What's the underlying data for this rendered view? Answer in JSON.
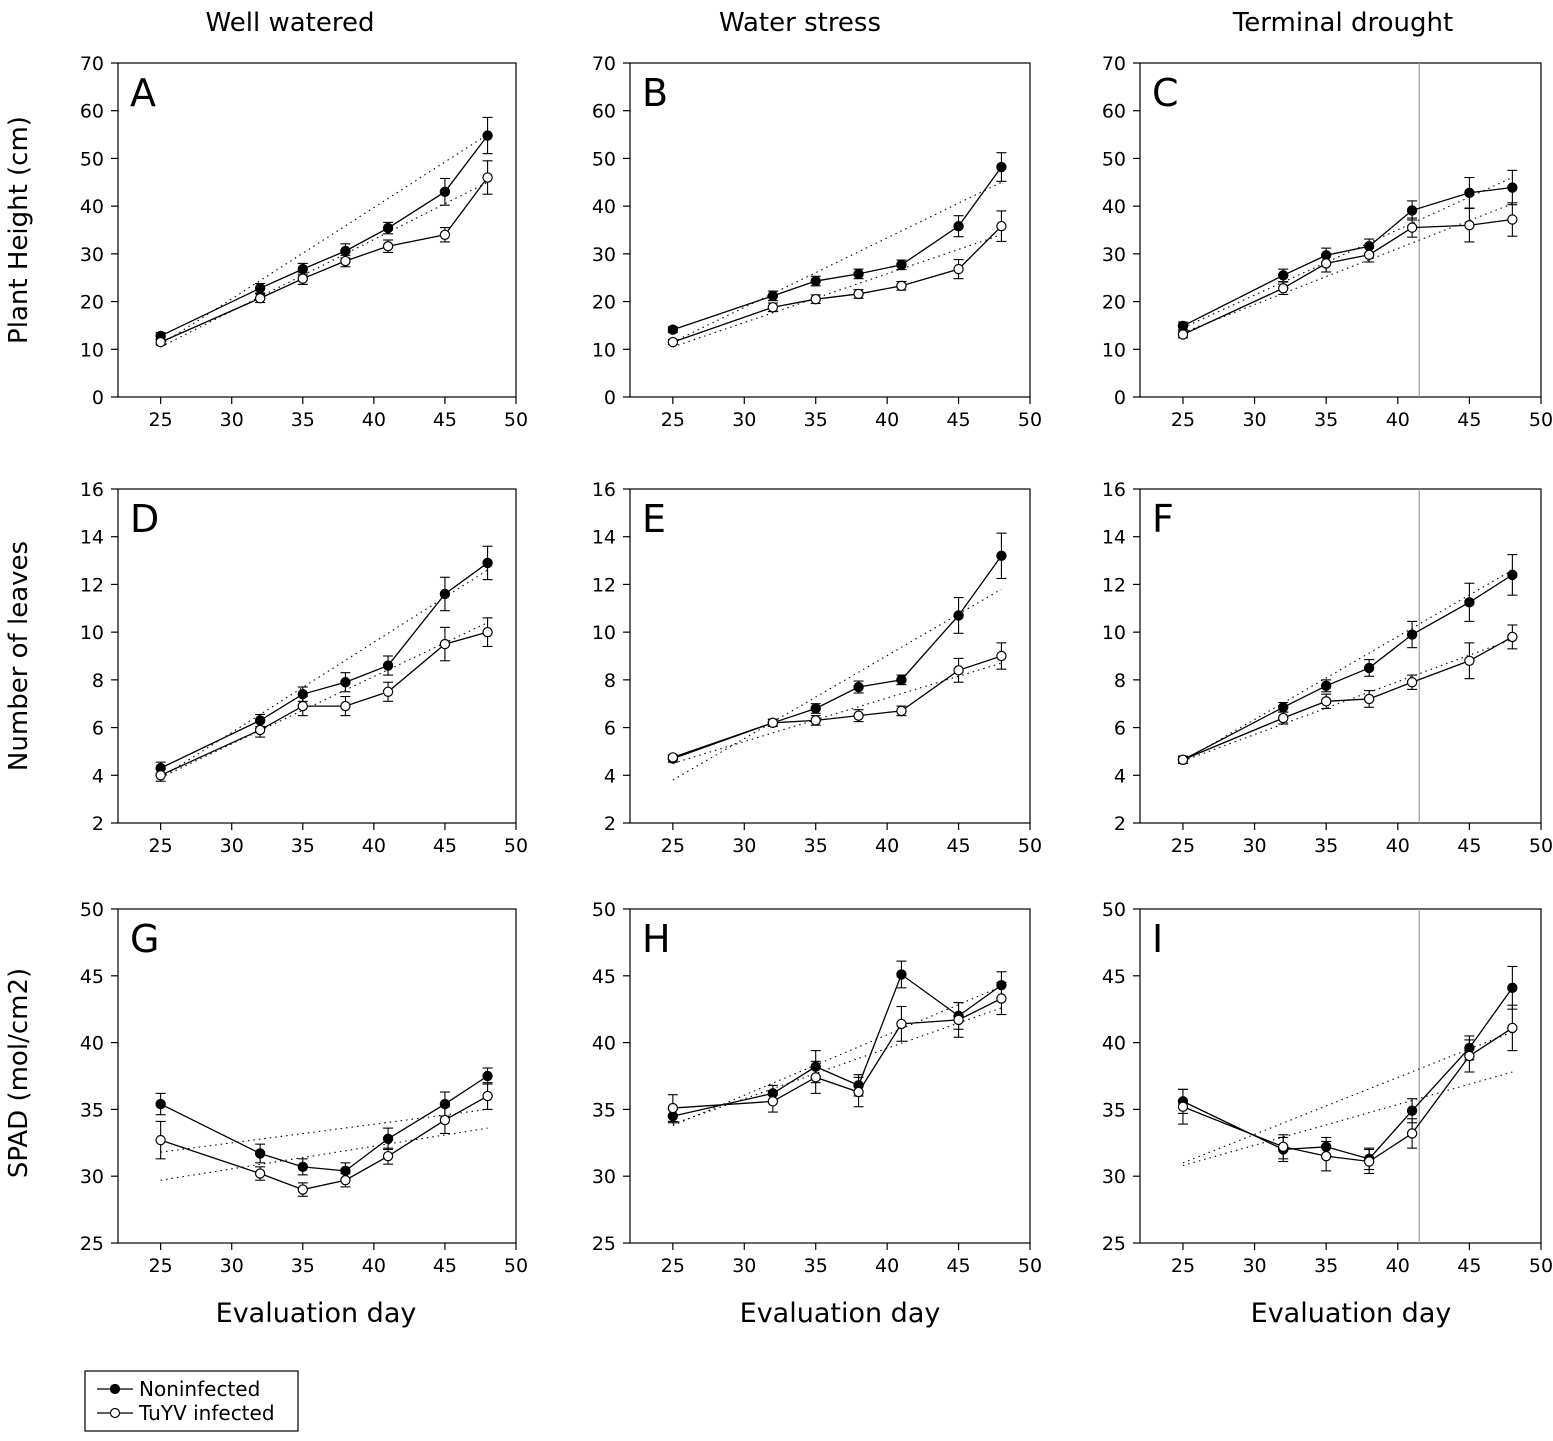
{
  "column_titles": [
    "Well watered",
    "Water stress",
    "Terminal drought"
  ],
  "row_titles": [
    "Plant Height (cm)",
    "Number of leaves",
    "SPAD (mol/cm2)"
  ],
  "xlabel": "Evaluation day",
  "legend": {
    "noninfected": "Noninfected",
    "infected": "TuYV infected"
  },
  "colors": {
    "line": "#000000",
    "marker_filled": "#000000",
    "marker_open": "#ffffff",
    "vline": "#a0a0a0",
    "trend": "#000000"
  },
  "chart_data": [
    {
      "panel": "A",
      "type": "line",
      "column": "Well watered",
      "ylabel": "Plant Height (cm)",
      "x": [
        25,
        32,
        35,
        38,
        41,
        45,
        48
      ],
      "xlim": [
        22,
        50
      ],
      "xticks": [
        25,
        30,
        35,
        40,
        45,
        50
      ],
      "ylim": [
        0,
        70
      ],
      "yticks": [
        0,
        10,
        20,
        30,
        40,
        50,
        60,
        70
      ],
      "vline": null,
      "series": [
        {
          "name": "Noninfected",
          "values": [
            12.8,
            22.8,
            26.8,
            30.6,
            35.4,
            43.0,
            54.8
          ],
          "errors": [
            0.7,
            1.0,
            1.2,
            1.5,
            1.2,
            2.8,
            3.8
          ],
          "trend": [
            11.0,
            55.0
          ]
        },
        {
          "name": "TuYV infected",
          "values": [
            11.5,
            20.7,
            24.8,
            28.5,
            31.6,
            34.0,
            46.0
          ],
          "errors": [
            0.6,
            0.9,
            1.2,
            1.2,
            1.3,
            1.5,
            3.5
          ],
          "trend": [
            10.5,
            45.0
          ]
        }
      ]
    },
    {
      "panel": "B",
      "type": "line",
      "column": "Water stress",
      "ylabel": "Plant Height (cm)",
      "x": [
        25,
        32,
        35,
        38,
        41,
        45,
        48
      ],
      "xlim": [
        22,
        50
      ],
      "xticks": [
        25,
        30,
        35,
        40,
        45,
        50
      ],
      "ylim": [
        0,
        70
      ],
      "yticks": [
        0,
        10,
        20,
        30,
        40,
        50,
        60,
        70
      ],
      "vline": null,
      "series": [
        {
          "name": "Noninfected",
          "values": [
            14.1,
            21.2,
            24.3,
            25.8,
            27.7,
            35.8,
            48.2
          ],
          "errors": [
            0.6,
            1.0,
            1.0,
            1.0,
            1.0,
            2.2,
            3.0
          ],
          "trend": [
            11.5,
            45.0
          ]
        },
        {
          "name": "TuYV infected",
          "values": [
            11.5,
            18.8,
            20.5,
            21.6,
            23.3,
            26.8,
            35.8
          ],
          "errors": [
            0.5,
            0.9,
            0.9,
            0.9,
            0.9,
            2.0,
            3.2
          ],
          "trend": [
            10.5,
            34.0
          ]
        }
      ]
    },
    {
      "panel": "C",
      "type": "line",
      "column": "Terminal drought",
      "ylabel": "Plant Height (cm)",
      "x": [
        25,
        32,
        35,
        38,
        41,
        45,
        48
      ],
      "xlim": [
        22,
        50
      ],
      "xticks": [
        25,
        30,
        35,
        40,
        45,
        50
      ],
      "ylim": [
        0,
        70
      ],
      "yticks": [
        0,
        10,
        20,
        30,
        40,
        50,
        60,
        70
      ],
      "vline": 41.5,
      "series": [
        {
          "name": "Noninfected",
          "values": [
            14.9,
            25.5,
            29.7,
            31.6,
            39.1,
            42.8,
            43.9
          ],
          "errors": [
            0.8,
            1.3,
            1.5,
            1.5,
            2.0,
            3.2,
            3.6
          ],
          "trend": [
            14.5,
            46.0
          ]
        },
        {
          "name": "TuYV infected",
          "values": [
            13.1,
            22.8,
            28.0,
            29.8,
            35.5,
            36.0,
            37.2
          ],
          "errors": [
            0.7,
            1.3,
            1.8,
            1.5,
            2.0,
            3.5,
            3.5
          ],
          "trend": [
            13.5,
            40.5
          ]
        }
      ]
    },
    {
      "panel": "D",
      "type": "line",
      "column": "Well watered",
      "ylabel": "Number of leaves",
      "x": [
        25,
        32,
        35,
        38,
        41,
        45,
        48
      ],
      "xlim": [
        22,
        50
      ],
      "xticks": [
        25,
        30,
        35,
        40,
        45,
        50
      ],
      "ylim": [
        2,
        16
      ],
      "yticks": [
        2,
        4,
        6,
        8,
        10,
        12,
        14,
        16
      ],
      "vline": null,
      "series": [
        {
          "name": "Noninfected",
          "values": [
            4.3,
            6.3,
            7.4,
            7.9,
            8.6,
            11.6,
            12.9
          ],
          "errors": [
            0.25,
            0.25,
            0.3,
            0.4,
            0.4,
            0.7,
            0.7
          ],
          "trend": [
            3.9,
            12.6
          ]
        },
        {
          "name": "TuYV infected",
          "values": [
            4.0,
            5.9,
            6.9,
            6.9,
            7.5,
            9.5,
            10.0
          ],
          "errors": [
            0.25,
            0.3,
            0.4,
            0.4,
            0.4,
            0.7,
            0.6
          ],
          "trend": [
            3.9,
            10.4
          ]
        }
      ]
    },
    {
      "panel": "E",
      "type": "line",
      "column": "Water stress",
      "ylabel": "Number of leaves",
      "x": [
        25,
        32,
        35,
        38,
        41,
        45,
        48
      ],
      "xlim": [
        22,
        50
      ],
      "xticks": [
        25,
        30,
        35,
        40,
        45,
        50
      ],
      "ylim": [
        2,
        16
      ],
      "yticks": [
        2,
        4,
        6,
        8,
        10,
        12,
        14,
        16
      ],
      "vline": null,
      "series": [
        {
          "name": "Noninfected",
          "values": [
            4.7,
            6.2,
            6.8,
            7.7,
            8.0,
            10.7,
            13.2
          ],
          "errors": [
            0.15,
            0.15,
            0.2,
            0.25,
            0.2,
            0.75,
            0.95
          ],
          "trend": [
            3.8,
            11.8
          ]
        },
        {
          "name": "TuYV infected",
          "values": [
            4.75,
            6.2,
            6.3,
            6.5,
            6.7,
            8.4,
            9.0
          ],
          "errors": [
            0.1,
            0.15,
            0.2,
            0.25,
            0.2,
            0.5,
            0.55
          ],
          "trend": [
            4.5,
            8.7
          ]
        }
      ]
    },
    {
      "panel": "F",
      "type": "line",
      "column": "Terminal drought",
      "ylabel": "Number of leaves",
      "x": [
        25,
        32,
        35,
        38,
        41,
        45,
        48
      ],
      "xlim": [
        22,
        50
      ],
      "xticks": [
        25,
        30,
        35,
        40,
        45,
        50
      ],
      "ylim": [
        2,
        16
      ],
      "yticks": [
        2,
        4,
        6,
        8,
        10,
        12,
        14,
        16
      ],
      "vline": 41.5,
      "series": [
        {
          "name": "Noninfected",
          "values": [
            4.65,
            6.85,
            7.75,
            8.5,
            9.9,
            11.25,
            12.4
          ],
          "errors": [
            0.15,
            0.2,
            0.25,
            0.35,
            0.55,
            0.8,
            0.85
          ],
          "trend": [
            4.6,
            12.6
          ]
        },
        {
          "name": "TuYV infected",
          "values": [
            4.65,
            6.4,
            7.1,
            7.2,
            7.9,
            8.8,
            9.8
          ],
          "errors": [
            0.15,
            0.25,
            0.3,
            0.35,
            0.3,
            0.75,
            0.5
          ],
          "trend": [
            4.6,
            9.7
          ]
        }
      ]
    },
    {
      "panel": "G",
      "type": "line",
      "column": "Well watered",
      "ylabel": "SPAD (mol/cm2)",
      "x": [
        25,
        32,
        35,
        38,
        41,
        45,
        48
      ],
      "xlim": [
        22,
        50
      ],
      "xticks": [
        25,
        30,
        35,
        40,
        45,
        50
      ],
      "ylim": [
        25,
        50
      ],
      "yticks": [
        25,
        30,
        35,
        40,
        45,
        50
      ],
      "vline": null,
      "series": [
        {
          "name": "Noninfected",
          "values": [
            35.4,
            31.7,
            30.7,
            30.4,
            32.8,
            35.4,
            37.5
          ],
          "errors": [
            0.8,
            0.7,
            0.6,
            0.6,
            0.8,
            0.9,
            0.6
          ],
          "trend": [
            31.8,
            35.0
          ]
        },
        {
          "name": "TuYV infected",
          "values": [
            32.7,
            30.2,
            29.0,
            29.7,
            31.5,
            34.2,
            36.0
          ],
          "errors": [
            1.4,
            0.5,
            0.5,
            0.5,
            0.6,
            1.0,
            1.0
          ],
          "trend": [
            29.7,
            33.6
          ]
        }
      ]
    },
    {
      "panel": "H",
      "type": "line",
      "column": "Water stress",
      "ylabel": "SPAD (mol/cm2)",
      "x": [
        25,
        32,
        35,
        38,
        41,
        45,
        48
      ],
      "xlim": [
        22,
        50
      ],
      "xticks": [
        25,
        30,
        35,
        40,
        45,
        50
      ],
      "ylim": [
        25,
        50
      ],
      "yticks": [
        25,
        30,
        35,
        40,
        45,
        50
      ],
      "vline": null,
      "series": [
        {
          "name": "Noninfected",
          "values": [
            34.5,
            36.2,
            38.2,
            36.8,
            45.1,
            42.0,
            44.3
          ],
          "errors": [
            0.5,
            0.6,
            1.2,
            0.8,
            1.0,
            1.0,
            1.0
          ],
          "trend": [
            33.8,
            44.2
          ]
        },
        {
          "name": "TuYV infected",
          "values": [
            35.1,
            35.6,
            37.4,
            36.3,
            41.4,
            41.7,
            43.3
          ],
          "errors": [
            1.0,
            0.8,
            1.2,
            1.1,
            1.3,
            1.3,
            1.2
          ],
          "trend": [
            33.9,
            42.6
          ]
        }
      ]
    },
    {
      "panel": "I",
      "type": "line",
      "column": "Terminal drought",
      "ylabel": "SPAD (mol/cm2)",
      "x": [
        25,
        32,
        35,
        38,
        41,
        45,
        48
      ],
      "xlim": [
        22,
        50
      ],
      "xticks": [
        25,
        30,
        35,
        40,
        45,
        50
      ],
      "ylim": [
        25,
        50
      ],
      "yticks": [
        25,
        30,
        35,
        40,
        45,
        50
      ],
      "vline": 41.5,
      "series": [
        {
          "name": "Noninfected",
          "values": [
            35.6,
            32.0,
            32.2,
            31.3,
            34.9,
            39.6,
            44.1
          ],
          "errors": [
            0.9,
            0.9,
            0.7,
            0.8,
            0.9,
            0.9,
            1.6
          ],
          "trend": [
            31.0,
            40.8
          ]
        },
        {
          "name": "TuYV infected",
          "values": [
            35.2,
            32.2,
            31.5,
            31.1,
            33.2,
            39.0,
            41.1
          ],
          "errors": [
            1.3,
            0.9,
            1.1,
            0.9,
            1.1,
            1.2,
            1.7
          ],
          "trend": [
            30.8,
            37.8
          ]
        }
      ]
    }
  ]
}
